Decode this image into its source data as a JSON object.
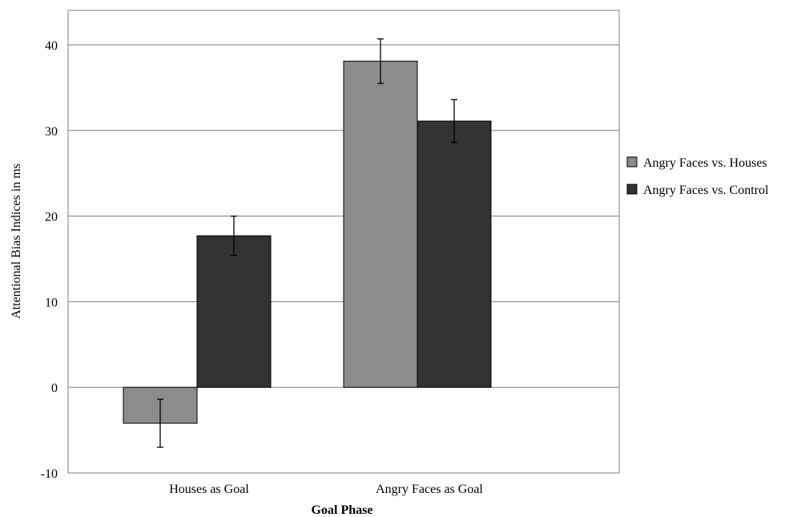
{
  "chart_data": {
    "type": "bar",
    "title": "",
    "xlabel": "Goal Phase",
    "ylabel": "Attentional Bias Indices in ms",
    "categories": [
      "Houses as Goal",
      "Angry Faces as Goal"
    ],
    "ylim": [
      -10,
      44
    ],
    "yticks": [
      -10,
      0,
      10,
      20,
      30,
      40
    ],
    "grid": true,
    "legend_position": "right",
    "series": [
      {
        "name": "Angry Faces vs. Houses",
        "color": "#8c8c8c",
        "values": [
          -4.2,
          38.1
        ],
        "errors": [
          2.8,
          2.6
        ]
      },
      {
        "name": "Angry Faces vs. Control",
        "color": "#333333",
        "values": [
          17.7,
          31.1
        ],
        "errors": [
          2.3,
          2.5
        ]
      }
    ]
  }
}
